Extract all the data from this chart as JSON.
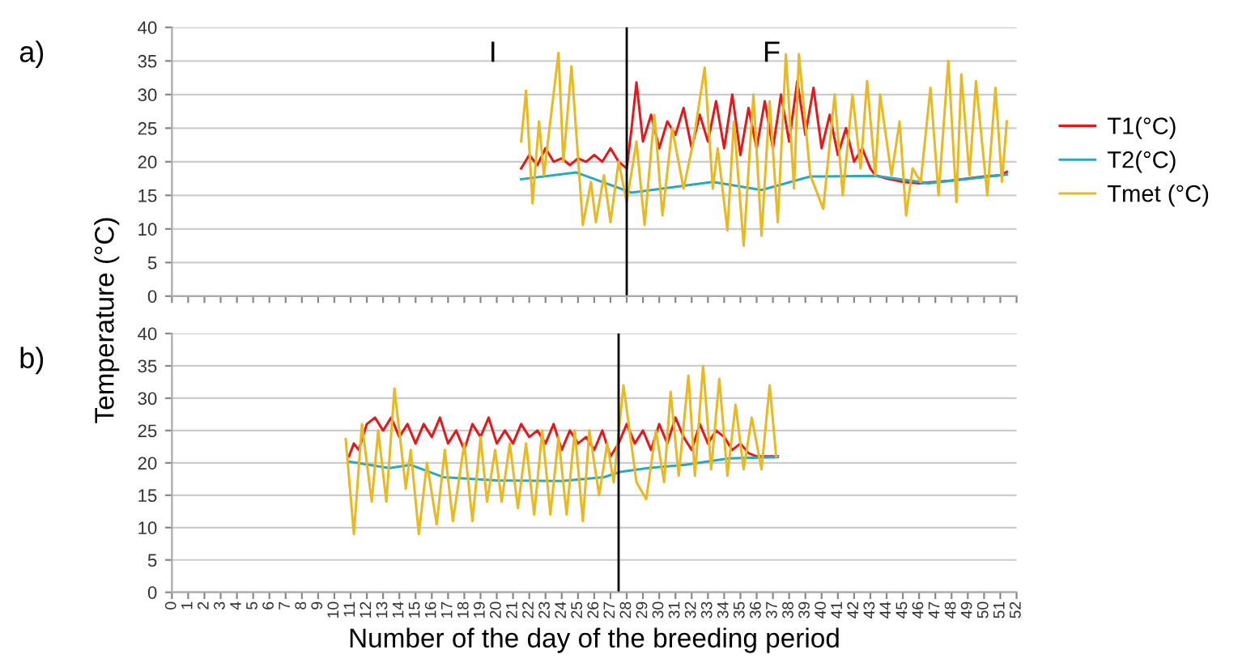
{
  "chart_data": [
    {
      "type": "line",
      "title": "a)",
      "ylabel": "Temperature (°C)",
      "xlim": [
        0,
        52
      ],
      "ylim": [
        0,
        40
      ],
      "yticks": [
        0,
        5,
        10,
        15,
        20,
        25,
        30,
        35,
        40
      ],
      "xticks": [
        0,
        1,
        2,
        3,
        4,
        5,
        6,
        7,
        8,
        9,
        10,
        11,
        12,
        13,
        14,
        15,
        16,
        17,
        18,
        19,
        20,
        21,
        22,
        23,
        24,
        25,
        26,
        27,
        28,
        29,
        30,
        31,
        32,
        33,
        34,
        35,
        36,
        37,
        38,
        39,
        40,
        41,
        42,
        43,
        44,
        45,
        46,
        47,
        48,
        49,
        50,
        51,
        52
      ],
      "tick_labels": "y",
      "grid": "y",
      "legend": "right",
      "marker": "none",
      "line_style": "solid",
      "annotations": [
        "I",
        "F"
      ],
      "ref_lines": [
        {
          "axis": "x",
          "value": 28,
          "color": "#000000"
        }
      ],
      "series": [
        {
          "name": "T1(°C)",
          "color": "#e31a1c",
          "x": [
            21.5,
            22,
            22.5,
            23,
            23.5,
            24,
            24.5,
            25,
            25.5,
            26,
            26.5,
            27,
            27.5,
            28,
            28.3,
            28.6,
            29,
            29.5,
            30,
            30.5,
            31,
            31.5,
            32,
            32.5,
            33,
            33.5,
            34,
            34.5,
            35,
            35.5,
            36,
            36.5,
            37,
            37.5,
            38,
            38.5,
            39,
            39.5,
            40,
            40.5,
            41,
            41.5,
            42,
            42.5,
            43,
            43.3,
            44,
            45,
            46,
            47,
            48,
            49,
            50,
            51,
            51.4
          ],
          "values": [
            19,
            21,
            19.5,
            22,
            20,
            20.5,
            19.5,
            20.5,
            20,
            21,
            20,
            22,
            20,
            19,
            25,
            31.8,
            23,
            27,
            22,
            26,
            24,
            28,
            22,
            27,
            23,
            29,
            22,
            30,
            21,
            28,
            22,
            29,
            22,
            30,
            23,
            32,
            24,
            31,
            22,
            27,
            21,
            25,
            20,
            22,
            19,
            18,
            17.5,
            17,
            16.8,
            17,
            17.2,
            17.5,
            17.8,
            18,
            18.5
          ]
        },
        {
          "name": "T2(°C)",
          "color": "#2ca7c0",
          "x": [
            21.5,
            24.9,
            28.3,
            33.3,
            36.3,
            39.3,
            43.3,
            46.6,
            51.4
          ],
          "values": [
            17.4,
            18.4,
            15.4,
            17.0,
            15.8,
            17.8,
            17.9,
            16.8,
            18.1
          ]
        },
        {
          "name": "Tmet (°C)",
          "color": "#e8b923",
          "x": [
            21.5,
            21.8,
            22.2,
            22.6,
            22.9,
            23.8,
            24.1,
            24.6,
            25.3,
            25.8,
            26.1,
            26.6,
            27.0,
            27.5,
            28.0,
            28.6,
            29.1,
            29.7,
            30.2,
            30.8,
            31.5,
            32.1,
            32.8,
            33.3,
            33.6,
            34.2,
            34.6,
            35.2,
            35.8,
            36.3,
            36.8,
            37.3,
            37.8,
            38.3,
            38.6,
            39.3,
            40.1,
            40.8,
            41.3,
            41.9,
            42.4,
            42.8,
            43.3,
            43.6,
            44.3,
            44.8,
            45.2,
            45.6,
            46.1,
            46.7,
            47.2,
            47.8,
            48.3,
            48.6,
            49.1,
            49.5,
            50.2,
            50.7,
            51.1,
            51.4
          ],
          "values": [
            23,
            30.6,
            13.8,
            26,
            18,
            36.2,
            20,
            34.2,
            10.6,
            17,
            11,
            18,
            11,
            20,
            14,
            23,
            10.6,
            27,
            12,
            25,
            16,
            23,
            34,
            16,
            22,
            9.8,
            26,
            7.5,
            30,
            9,
            29,
            11,
            36,
            16,
            36,
            18,
            13,
            30,
            15,
            30,
            19,
            32,
            18,
            30,
            18,
            26,
            12,
            19,
            17,
            31,
            15,
            35,
            14,
            33,
            18,
            32,
            15,
            31,
            17,
            26
          ]
        }
      ]
    },
    {
      "type": "line",
      "title": "b)",
      "xlabel": "Number of the day of the breeding period",
      "xlim": [
        0,
        52
      ],
      "ylim": [
        0,
        40
      ],
      "yticks": [
        0,
        5,
        10,
        15,
        20,
        25,
        30,
        35,
        40
      ],
      "xticks": [
        0,
        1,
        2,
        3,
        4,
        5,
        6,
        7,
        8,
        9,
        10,
        11,
        12,
        13,
        14,
        15,
        16,
        17,
        18,
        19,
        20,
        21,
        22,
        23,
        24,
        25,
        26,
        27,
        28,
        29,
        30,
        31,
        32,
        33,
        34,
        35,
        36,
        37,
        38,
        39,
        40,
        41,
        42,
        43,
        44,
        45,
        46,
        47,
        48,
        49,
        50,
        51,
        52
      ],
      "grid": "y",
      "legend": false,
      "marker": "none",
      "line_style": "solid",
      "ref_lines": [
        {
          "axis": "x",
          "value": 27.5,
          "color": "#000000"
        }
      ],
      "series": [
        {
          "color": "#e31a1c",
          "x": [
            10.9,
            11.2,
            11.5,
            12,
            12.5,
            13,
            13.5,
            14,
            14.5,
            15,
            15.5,
            16,
            16.5,
            17,
            17.5,
            18,
            18.5,
            19,
            19.5,
            20,
            20.5,
            21,
            21.5,
            22,
            22.5,
            23,
            23.5,
            24,
            24.5,
            25,
            25.5,
            26,
            26.5,
            27,
            27.5,
            28,
            28.5,
            29,
            29.5,
            30,
            30.5,
            31,
            31.5,
            32,
            32.5,
            33,
            33.5,
            34,
            34.5,
            35,
            35.5,
            36,
            37,
            37.3
          ],
          "values": [
            21,
            23,
            22,
            26,
            27,
            25,
            27,
            24,
            26,
            23,
            26,
            24,
            27,
            23,
            25,
            22,
            26,
            24,
            27,
            23,
            25,
            23,
            26,
            24,
            25,
            23,
            26,
            22,
            25,
            23,
            24,
            22,
            25,
            21,
            23,
            26,
            23,
            25,
            22,
            26,
            23,
            27,
            24,
            22,
            26,
            23,
            25,
            24,
            22,
            23,
            21.5,
            21,
            21,
            21
          ]
        },
        {
          "color": "#2ca7c0",
          "x": [
            10.9,
            13.4,
            14.7,
            16.7,
            20.0,
            24.0,
            26.6,
            27.6,
            29.3,
            31.6,
            34.3,
            37.3
          ],
          "values": [
            20.2,
            19.2,
            19.7,
            17.8,
            17.3,
            17.2,
            17.8,
            18.6,
            19.2,
            19.7,
            20.7,
            20.9
          ]
        },
        {
          "color": "#e8b923",
          "x": [
            10.7,
            11.2,
            11.7,
            12.3,
            12.7,
            13.2,
            13.7,
            14.4,
            14.7,
            15.2,
            15.7,
            16.3,
            16.8,
            17.3,
            18.0,
            18.5,
            19.0,
            19.4,
            19.9,
            20.3,
            20.8,
            21.3,
            21.8,
            22.3,
            22.8,
            23.3,
            23.8,
            24.3,
            24.8,
            25.3,
            25.7,
            26.3,
            26.8,
            27.2,
            27.8,
            28.6,
            29.2,
            29.8,
            30.3,
            30.7,
            31.2,
            31.8,
            32.2,
            32.7,
            33.2,
            33.7,
            34.2,
            34.7,
            35.2,
            35.7,
            36.3,
            36.8,
            37.2
          ],
          "values": [
            23.7,
            9,
            26,
            14,
            25,
            14,
            31.5,
            16,
            22,
            9,
            20,
            10.5,
            22,
            11,
            23,
            11,
            24,
            14,
            22,
            14,
            23,
            13,
            23,
            12,
            25,
            12,
            24,
            12,
            25,
            11,
            25,
            15,
            23,
            17,
            32,
            17,
            14.4,
            25,
            17,
            31,
            18,
            33.5,
            18,
            35,
            19,
            33,
            18,
            29,
            19,
            27,
            19,
            32,
            21
          ]
        }
      ]
    }
  ]
}
